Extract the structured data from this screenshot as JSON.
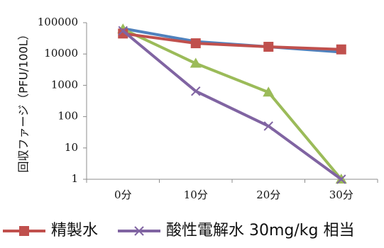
{
  "chart_data": {
    "type": "line",
    "title": "",
    "xlabel": "",
    "ylabel": "回収ファージ（PFU/100L）",
    "y_scale": "log",
    "ylim": [
      1,
      100000
    ],
    "y_ticks": [
      "1",
      "10",
      "100",
      "1000",
      "10000",
      "100000"
    ],
    "categories": [
      "0分",
      "10分",
      "20分",
      "30分"
    ],
    "grid": false,
    "legend_position": "bottom",
    "series": [
      {
        "name": "",
        "color": "#4f81bd",
        "marker": "none",
        "values": [
          65000,
          25000,
          17000,
          11500
        ],
        "in_legend": false
      },
      {
        "name": "",
        "color": "#9bbb59",
        "marker": "triangle",
        "values": [
          62000,
          5000,
          600,
          1
        ],
        "in_legend": false
      },
      {
        "name": "精製水",
        "color": "#c0504d",
        "marker": "square",
        "values": [
          45000,
          22000,
          17000,
          14000
        ],
        "in_legend": true
      },
      {
        "name": "酸性電解水 30mg/kg 相当",
        "color": "#8064a2",
        "marker": "x",
        "values": [
          55000,
          650,
          50,
          1
        ],
        "in_legend": true
      }
    ]
  }
}
